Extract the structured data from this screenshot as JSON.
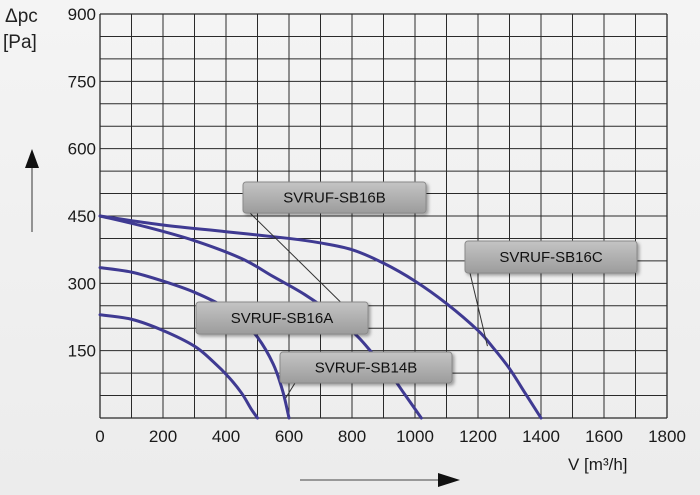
{
  "chart_data": {
    "type": "line",
    "ylabel_line1": "Δpc",
    "ylabel_line2": "[Pa]",
    "xlabel": "V [m³/h]",
    "xlim": [
      0,
      1800
    ],
    "ylim": [
      0,
      900
    ],
    "x_ticks": [
      0,
      200,
      400,
      600,
      800,
      1000,
      1200,
      1400,
      1600,
      1800
    ],
    "y_ticks": [
      150,
      300,
      450,
      600,
      750,
      900
    ],
    "grid": true,
    "line_color": "#3f3a92",
    "series": [
      {
        "name": "SVRUF-SB16B",
        "x": [
          0,
          150,
          300,
          450,
          550,
          650,
          750,
          820,
          870,
          920,
          960,
          1000,
          1020
        ],
        "y": [
          450,
          425,
          395,
          355,
          315,
          275,
          225,
          180,
          140,
          100,
          60,
          20,
          0
        ]
      },
      {
        "name": "SVRUF-SB16C",
        "x": [
          0,
          200,
          400,
          600,
          700,
          800,
          900,
          1000,
          1100,
          1200,
          1250,
          1300,
          1350,
          1400
        ],
        "y": [
          450,
          430,
          415,
          400,
          390,
          375,
          345,
          305,
          255,
          195,
          155,
          110,
          55,
          0
        ]
      },
      {
        "name": "SVRUF-SB16A",
        "x": [
          0,
          100,
          200,
          300,
          400,
          450,
          500,
          550,
          580,
          600
        ],
        "y": [
          335,
          325,
          305,
          280,
          245,
          215,
          180,
          120,
          60,
          0
        ]
      },
      {
        "name": "SVRUF-SB14B",
        "x": [
          0,
          100,
          200,
          300,
          360,
          410,
          450,
          480,
          500
        ],
        "y": [
          230,
          220,
          195,
          160,
          125,
          90,
          55,
          20,
          0
        ]
      }
    ],
    "annotations": [
      {
        "text": "SVRUF-SB16B",
        "series": 0
      },
      {
        "text": "SVRUF-SB16C",
        "series": 1
      },
      {
        "text": "SVRUF-SB16A",
        "series": 2
      },
      {
        "text": "SVRUF-SB14B",
        "series": 3
      }
    ]
  }
}
